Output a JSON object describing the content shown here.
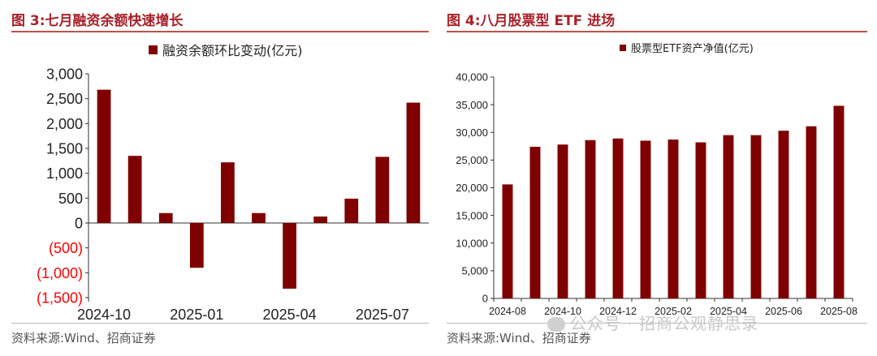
{
  "left": {
    "fig_title": "图 3:七月融资余额快速增长",
    "source": "资料来源:Wind、招商证券"
  },
  "right": {
    "fig_title": "图 4:八月股票型 ETF 进场",
    "source": "资料来源:Wind、招商证券",
    "watermark": "公众号 · 招商公观静思录"
  },
  "colors": {
    "bar": "#7f0000",
    "title": "#a8222a",
    "negative_tick": "#ff0000"
  },
  "chart_data": [
    {
      "type": "bar",
      "title": "",
      "legend": "融资余额环比变动(亿元)",
      "legend_position": "top-center",
      "categories": [
        "2024-10",
        "2024-11",
        "2024-12",
        "2025-01",
        "2025-02",
        "2025-03",
        "2025-04",
        "2025-05",
        "2025-06",
        "2025-07",
        "2025-08"
      ],
      "values": [
        2680,
        1350,
        200,
        -900,
        1220,
        200,
        -1320,
        130,
        490,
        1330,
        2420
      ],
      "x_tick_labels": [
        "2024-10",
        "2025-01",
        "2025-04",
        "2025-07"
      ],
      "x_tick_indices": [
        0,
        3,
        6,
        9
      ],
      "y_ticks": [
        3000,
        2500,
        2000,
        1500,
        1000,
        500,
        0,
        -500,
        -1000,
        -1500
      ],
      "y_tick_labels": [
        "3,000",
        "2,500",
        "2,000",
        "1,500",
        "1,000",
        "500",
        "0",
        "(500)",
        "(1,000)",
        "(1,500)"
      ],
      "ylim": [
        -1500,
        3000
      ],
      "grid": false
    },
    {
      "type": "bar",
      "title": "",
      "legend": "股票型ETF资产净值(亿元)",
      "legend_position": "top-center",
      "categories": [
        "2024-08",
        "2024-09",
        "2024-10",
        "2024-11",
        "2024-12",
        "2025-01",
        "2025-02",
        "2025-03",
        "2025-04",
        "2025-05",
        "2025-06",
        "2025-07",
        "2025-08"
      ],
      "values": [
        20600,
        27400,
        27800,
        28600,
        28900,
        28500,
        28700,
        28200,
        29500,
        29500,
        30300,
        31100,
        34800
      ],
      "x_tick_labels": [
        "2024-08",
        "2024-10",
        "2024-12",
        "2025-02",
        "2025-04",
        "2025-06",
        "2025-08"
      ],
      "x_tick_indices": [
        0,
        2,
        4,
        6,
        8,
        10,
        12
      ],
      "y_ticks": [
        40000,
        35000,
        30000,
        25000,
        20000,
        15000,
        10000,
        5000,
        0
      ],
      "y_tick_labels": [
        "40,000",
        "35,000",
        "30,000",
        "25,000",
        "20,000",
        "15,000",
        "10,000",
        "5,000",
        "0"
      ],
      "ylim": [
        0,
        40000
      ],
      "grid": false
    }
  ]
}
